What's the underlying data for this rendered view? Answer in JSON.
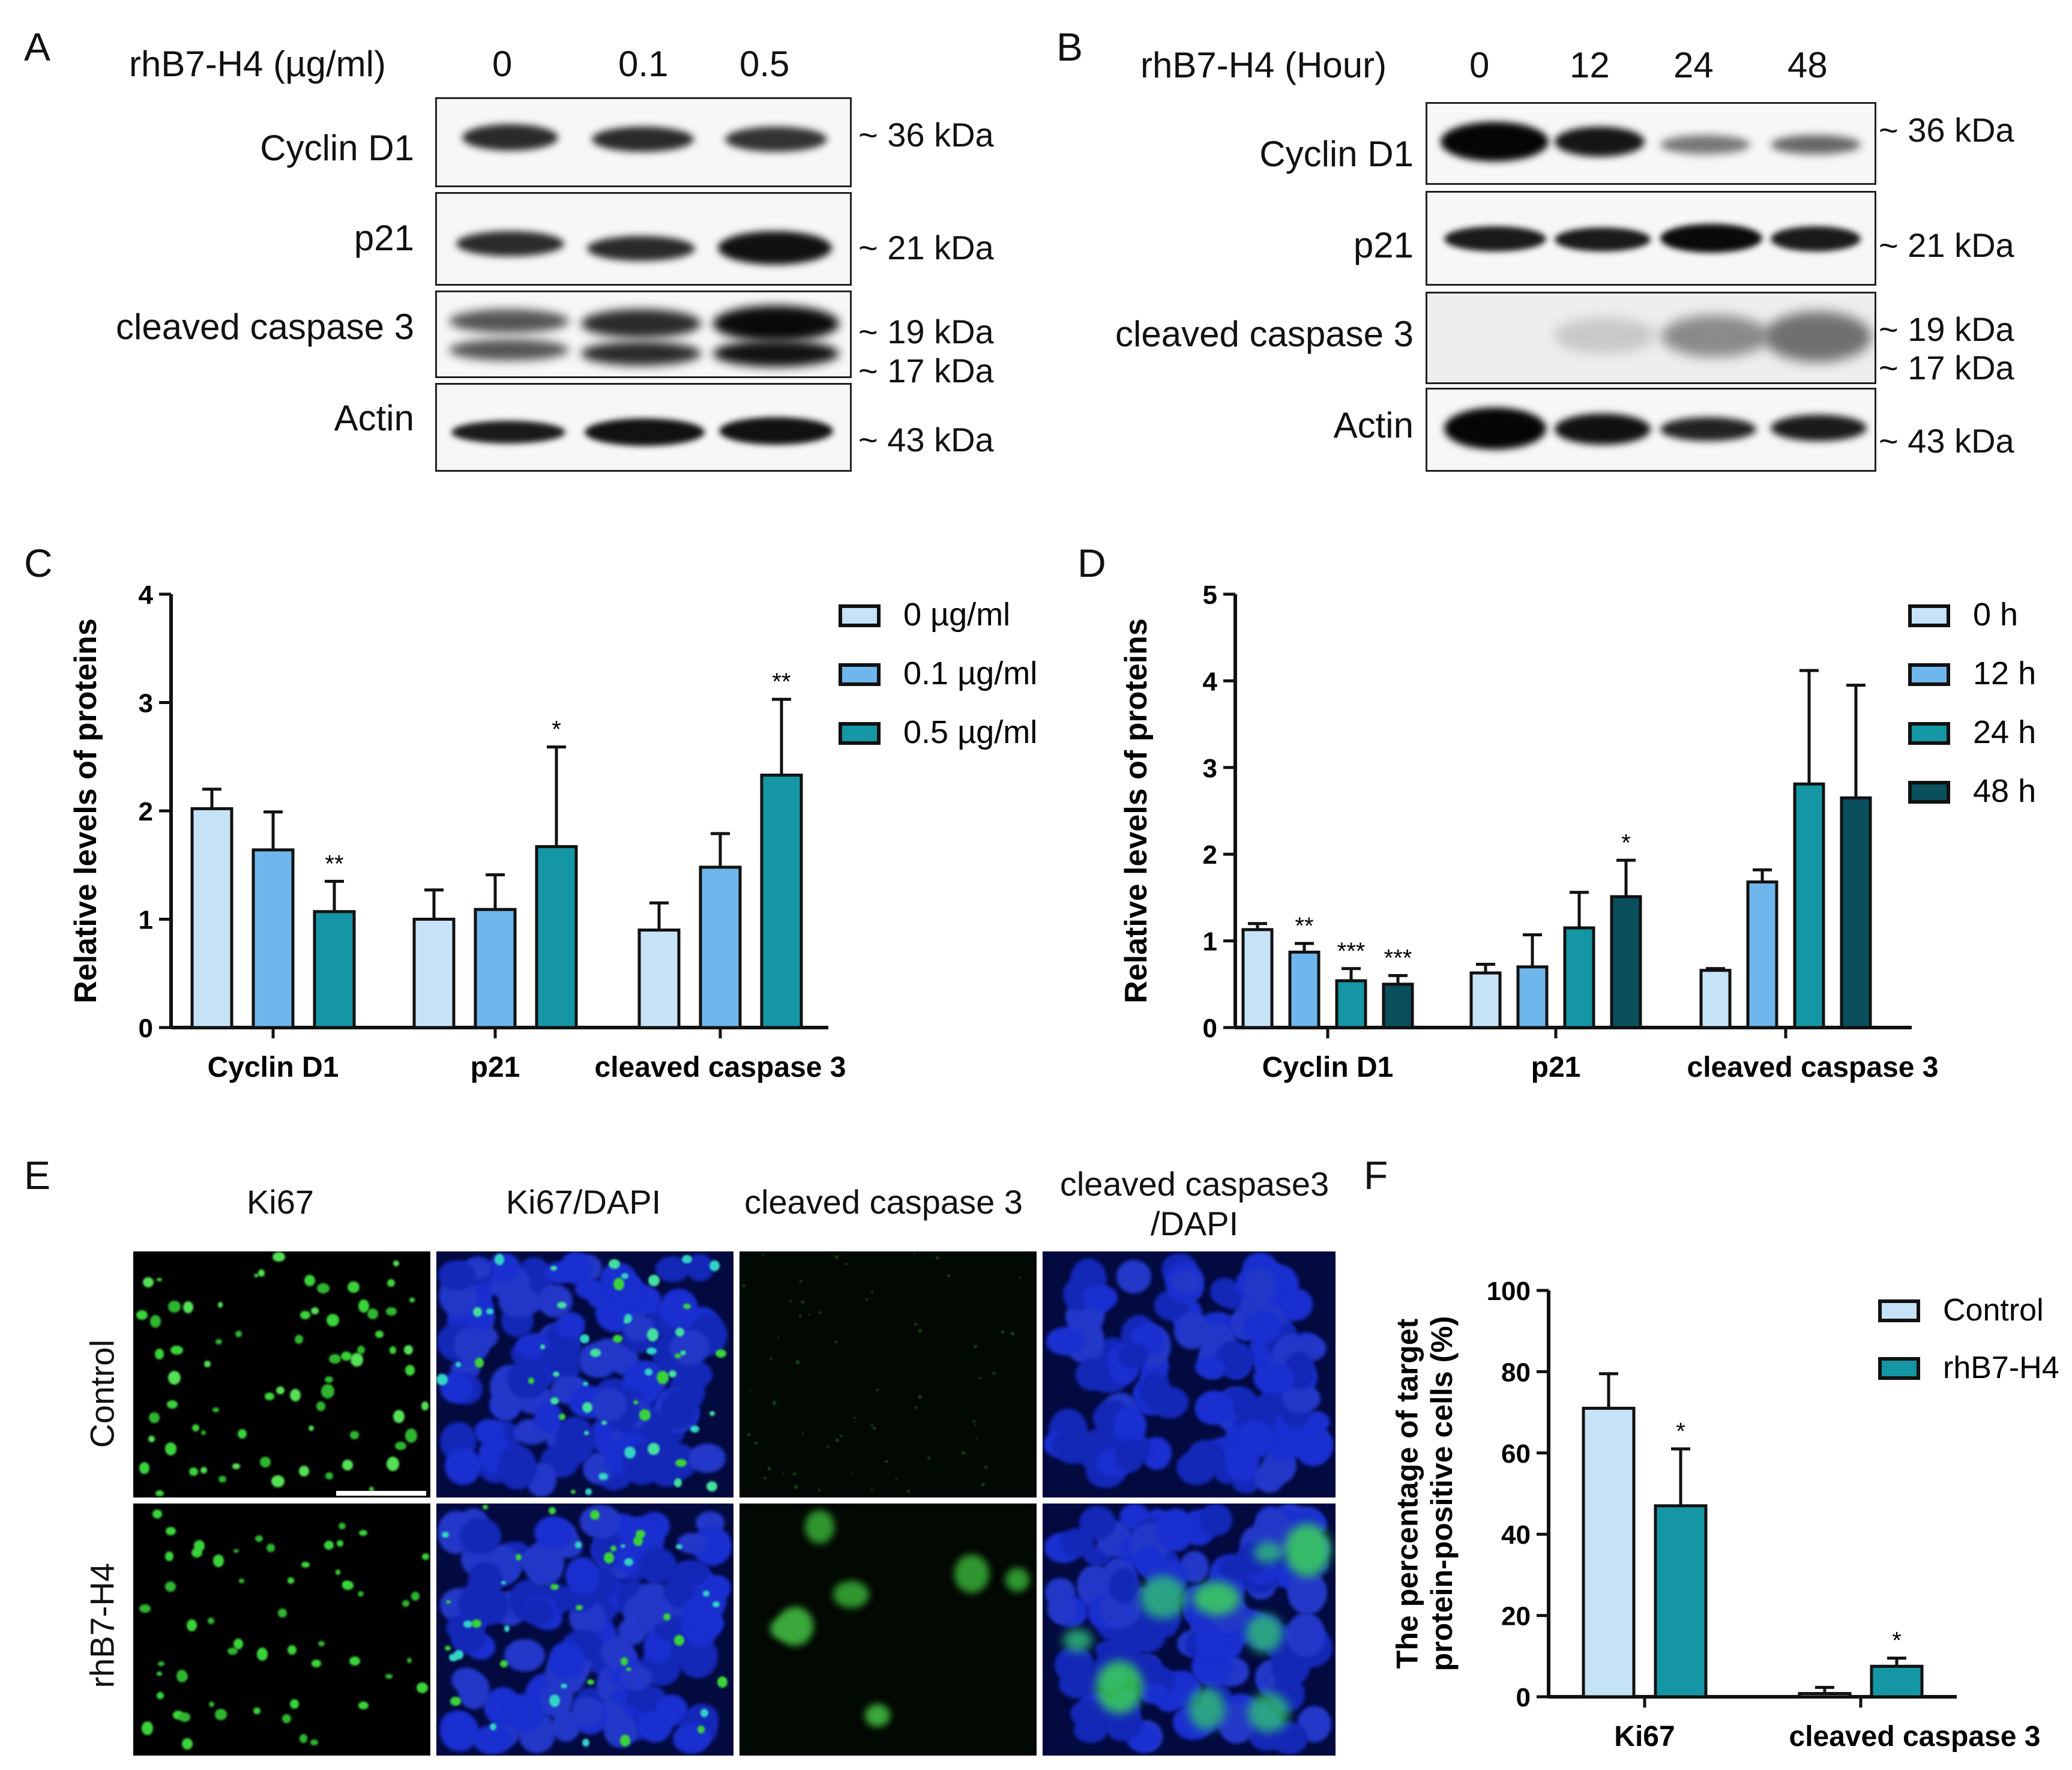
{
  "panels": {
    "A": {
      "letter": "A",
      "header_label": "rhB7-H4 (µg/ml)",
      "columns": [
        "0",
        "0.1",
        "0.5"
      ],
      "rows": [
        {
          "protein": "Cyclin D1",
          "sizes": [
            "~ 36 kDa"
          ]
        },
        {
          "protein": "p21",
          "sizes": [
            "~ 21 kDa"
          ]
        },
        {
          "protein": "cleaved caspase 3",
          "sizes": [
            "~ 19 kDa",
            "~ 17 kDa"
          ]
        },
        {
          "protein": "Actin",
          "sizes": [
            "~ 43 kDa"
          ]
        }
      ]
    },
    "B": {
      "letter": "B",
      "header_label": "rhB7-H4 (Hour)",
      "columns": [
        "0",
        "12",
        "24",
        "48"
      ],
      "rows": [
        {
          "protein": "Cyclin D1",
          "sizes": [
            "~ 36 kDa"
          ]
        },
        {
          "protein": "p21",
          "sizes": [
            "~ 21 kDa"
          ]
        },
        {
          "protein": "cleaved caspase 3",
          "sizes": [
            "~ 19 kDa",
            "~ 17 kDa"
          ]
        },
        {
          "protein": "Actin",
          "sizes": [
            "~ 43 kDa"
          ]
        }
      ]
    },
    "E": {
      "letter": "E",
      "columns": [
        "Ki67",
        "Ki67/DAPI",
        "cleaved caspase 3",
        "cleaved caspase3",
        "/DAPI"
      ],
      "rows": [
        "Control",
        "rhB7-H4"
      ]
    }
  },
  "chart_data": [
    {
      "id": "C",
      "letter": "C",
      "type": "bar",
      "ylabel": "Relative levels of proteins",
      "ylim": [
        0,
        4
      ],
      "yticks": [
        "0",
        "1",
        "2",
        "3",
        "4"
      ],
      "categories": [
        "Cyclin D1",
        "p21",
        "cleaved caspase 3"
      ],
      "series": [
        {
          "name": "0 µg/ml",
          "color": "#c6e2f7",
          "values": [
            2.02,
            1.0,
            0.9
          ],
          "errors": [
            0.18,
            0.27,
            0.25
          ],
          "sig": [
            "",
            "",
            ""
          ]
        },
        {
          "name": "0.1 µg/ml",
          "color": "#6fb6ec",
          "values": [
            1.64,
            1.09,
            1.48
          ],
          "errors": [
            0.35,
            0.32,
            0.31
          ],
          "sig": [
            "",
            "",
            ""
          ]
        },
        {
          "name": "0.5 µg/ml",
          "color": "#1596a4",
          "values": [
            1.07,
            1.67,
            2.33
          ],
          "errors": [
            0.28,
            0.92,
            0.7
          ],
          "sig": [
            "**",
            "*",
            "**"
          ]
        }
      ]
    },
    {
      "id": "D",
      "letter": "D",
      "type": "bar",
      "ylabel": "Relative levels of proteins",
      "ylim": [
        0,
        5
      ],
      "yticks": [
        "0",
        "1",
        "2",
        "3",
        "4",
        "5"
      ],
      "categories": [
        "Cyclin D1",
        "p21",
        "cleaved caspase 3"
      ],
      "series": [
        {
          "name": "0 h",
          "color": "#c6e2f7",
          "values": [
            1.13,
            0.63,
            0.66
          ],
          "errors": [
            0.07,
            0.1,
            0.02
          ],
          "sig": [
            "",
            "",
            ""
          ]
        },
        {
          "name": "12 h",
          "color": "#6fb6ec",
          "values": [
            0.87,
            0.7,
            1.68
          ],
          "errors": [
            0.1,
            0.37,
            0.14
          ],
          "sig": [
            "**",
            "",
            ""
          ]
        },
        {
          "name": "24 h",
          "color": "#1596a4",
          "values": [
            0.54,
            1.15,
            2.81
          ],
          "errors": [
            0.14,
            0.41,
            1.31
          ],
          "sig": [
            "***",
            "",
            ""
          ]
        },
        {
          "name": "48 h",
          "color": "#0a4f5c",
          "values": [
            0.5,
            1.51,
            2.65
          ],
          "errors": [
            0.1,
            0.42,
            1.3
          ],
          "sig": [
            "***",
            "*",
            ""
          ]
        }
      ]
    },
    {
      "id": "F",
      "letter": "F",
      "type": "bar",
      "ylabel": [
        "The percentage of target",
        "protein-positive cells (%)"
      ],
      "ylim": [
        0,
        100
      ],
      "yticks": [
        "0",
        "20",
        "40",
        "60",
        "80",
        "100"
      ],
      "categories": [
        "Ki67",
        "cleaved caspase 3"
      ],
      "series": [
        {
          "name": "Control",
          "color": "#c6e2f7",
          "values": [
            71,
            0.8
          ],
          "errors": [
            8.5,
            1.5
          ],
          "sig": [
            "",
            ""
          ]
        },
        {
          "name": "rhB7-H4",
          "color": "#1596a4",
          "values": [
            47,
            7.5
          ],
          "errors": [
            14,
            2
          ],
          "sig": [
            "*",
            "*"
          ]
        }
      ]
    }
  ]
}
